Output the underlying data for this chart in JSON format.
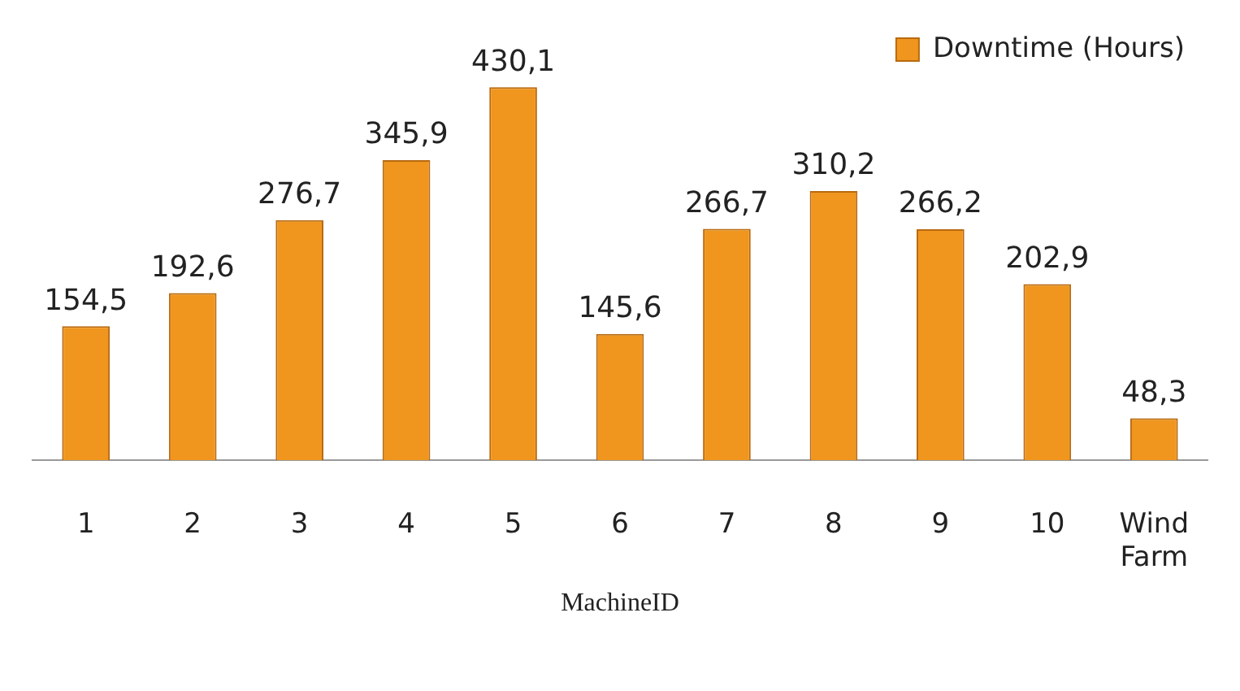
{
  "chart_data": {
    "type": "bar",
    "xlabel": "MachineID",
    "categories": [
      "1",
      "2",
      "3",
      "4",
      "5",
      "6",
      "7",
      "8",
      "9",
      "10",
      "Wind Farm"
    ],
    "series": [
      {
        "name": "Downtime (Hours)",
        "color": "#f0961e",
        "values": [
          154.5,
          192.6,
          276.7,
          345.9,
          430.1,
          145.6,
          266.7,
          310.2,
          266.2,
          202.9,
          48.3
        ],
        "value_labels": [
          "154,5",
          "192,6",
          "276,7",
          "345,9",
          "430,1",
          "145,6",
          "266,7",
          "310,2",
          "266,2",
          "202,9",
          "48,3"
        ]
      }
    ],
    "legend": "top right",
    "grid": false
  }
}
